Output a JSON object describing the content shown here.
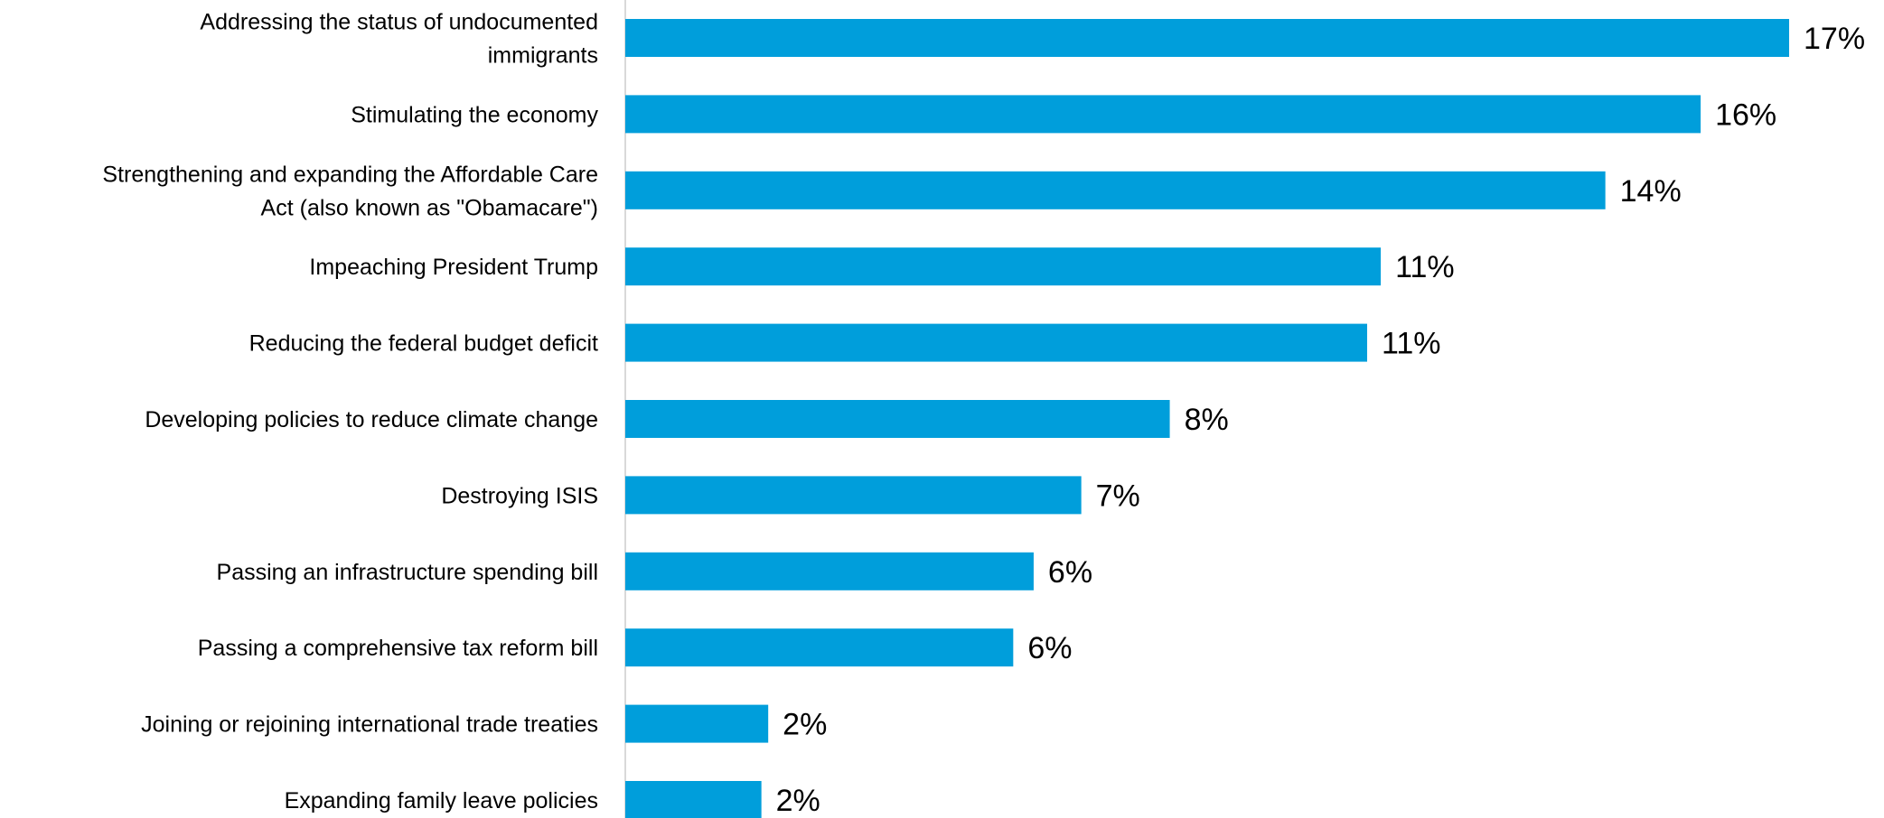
{
  "chart_data": {
    "type": "bar",
    "orientation": "horizontal",
    "categories": [
      [
        "Addressing the status of undocumented",
        "immigrants"
      ],
      [
        "Stimulating the economy"
      ],
      [
        "Strengthening and expanding the Affordable Care",
        "Act (also known as \"Obamacare\")"
      ],
      [
        "Impeaching President Trump"
      ],
      [
        "Reducing the federal budget deficit"
      ],
      [
        "Developing policies to reduce climate change"
      ],
      [
        "Destroying ISIS"
      ],
      [
        "Passing an infrastructure spending bill"
      ],
      [
        "Passing a comprehensive tax reform bill"
      ],
      [
        "Joining or rejoining international trade treaties"
      ],
      [
        "Expanding family leave policies"
      ]
    ],
    "values": [
      17.1,
      15.8,
      14.4,
      11.1,
      10.9,
      8.0,
      6.7,
      6.0,
      5.7,
      2.1,
      2.0
    ],
    "value_labels": [
      "17%",
      "16%",
      "14%",
      "11%",
      "11%",
      "8%",
      "7%",
      "6%",
      "6%",
      "2%",
      "2%"
    ],
    "bar_color": "#009edb",
    "axis_line_color": "#d9d9d9",
    "xlim": [
      0,
      17.1
    ],
    "title": "",
    "xlabel": "",
    "ylabel": "",
    "grid": false,
    "legend": false
  }
}
